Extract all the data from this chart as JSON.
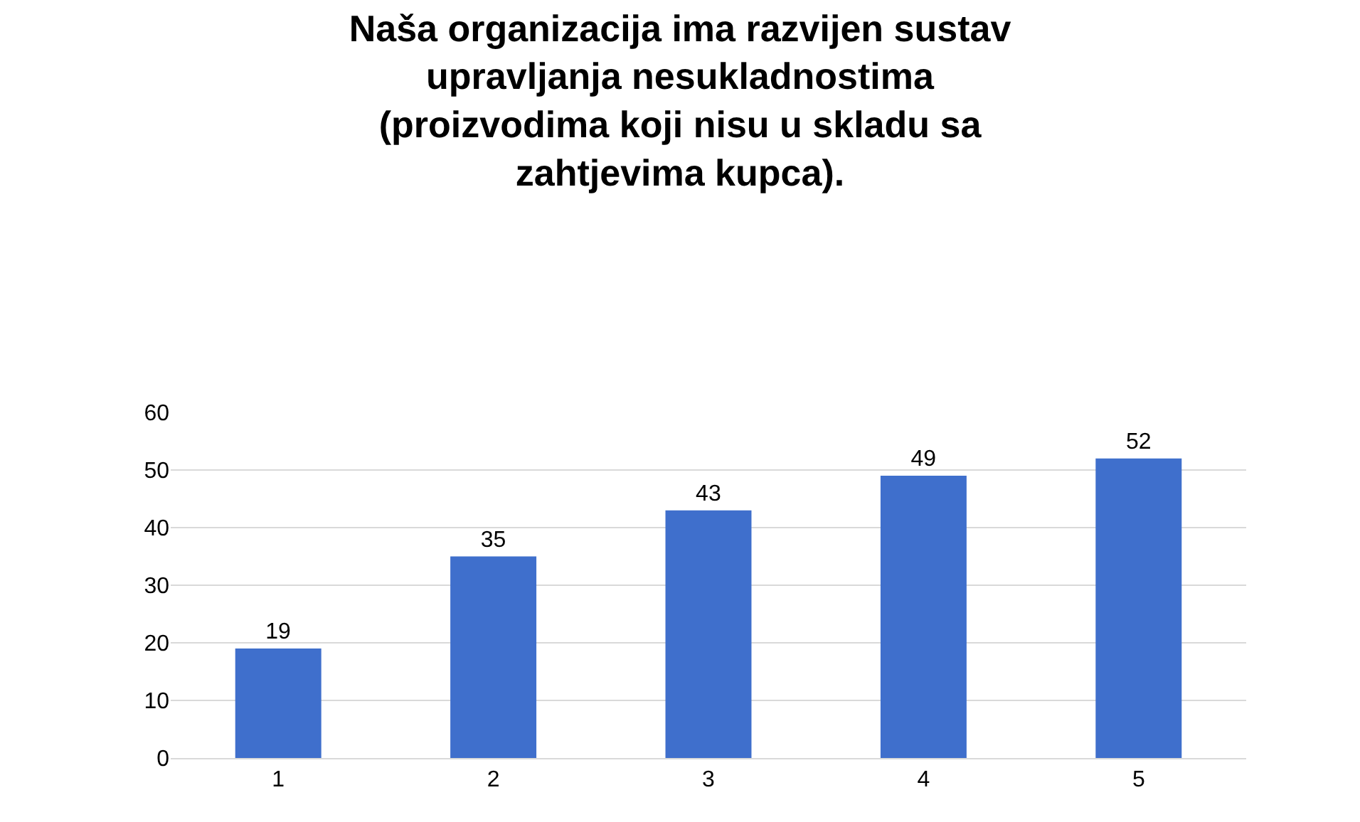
{
  "chart_data": {
    "type": "bar",
    "title": "Naša organizacija ima razvijen sustav\nupravljanja nesukladnostima\n(proizvodima koji nisu u skladu sa\nzahtjevima kupca).",
    "categories": [
      "1",
      "2",
      "3",
      "4",
      "5"
    ],
    "values": [
      19,
      35,
      43,
      49,
      52
    ],
    "color": "#3f6fcc",
    "ylim": [
      0,
      60
    ],
    "yticks": [
      0,
      10,
      20,
      30,
      40,
      50,
      60
    ],
    "grid": "y",
    "data_labels": true
  }
}
